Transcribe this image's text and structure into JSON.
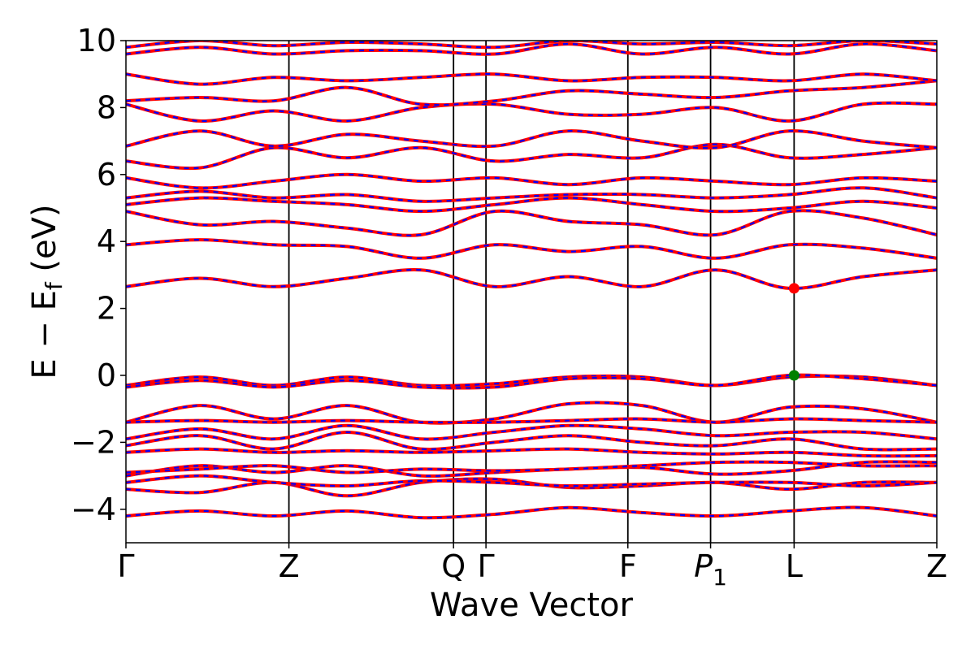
{
  "chart_data": {
    "type": "line",
    "xlabel": "Wave Vector",
    "ylabel": "E − E_f (eV)",
    "ylabel_main": "E − E",
    "ylabel_sub": "f",
    "ylabel_unit": " (eV)",
    "ylim": [
      -5,
      10
    ],
    "yticks": [
      -4,
      -2,
      0,
      2,
      4,
      6,
      8,
      10
    ],
    "ytick_labels": [
      "−4",
      "−2",
      "0",
      "2",
      "4",
      "6",
      "8",
      "10"
    ],
    "xlim": [
      0,
      1
    ],
    "kpoints": [
      {
        "label": "Γ",
        "pos": 0.0
      },
      {
        "label": "Z",
        "pos": 0.201
      },
      {
        "label": "Q",
        "pos": 0.404
      },
      {
        "label": "Γ",
        "pos": 0.444
      },
      {
        "label": "F",
        "pos": 0.619
      },
      {
        "label": "P",
        "sub": "1",
        "pos": 0.721
      },
      {
        "label": "L",
        "pos": 0.824
      },
      {
        "label": "Z",
        "pos": 1.0
      }
    ],
    "band_colors": {
      "primary": "#ff0000",
      "secondary": "#0000ff"
    },
    "markers": [
      {
        "name": "CBM",
        "x": 0.824,
        "y": 2.6,
        "color": "#ff0000"
      },
      {
        "name": "VBM",
        "x": 0.824,
        "y": 0.0,
        "color": "#008000"
      }
    ],
    "bands": [
      {
        "y": [
          -4.2,
          -4.05,
          -4.2,
          -4.05,
          -4.25,
          -4.15,
          -3.95,
          -4.1,
          -4.2,
          -4.05,
          -3.95,
          -4.2
        ]
      },
      {
        "y": [
          -3.4,
          -3.5,
          -3.2,
          -3.6,
          -3.2,
          -3.1,
          -3.35,
          -3.3,
          -3.2,
          -3.4,
          -3.2,
          -3.2
        ]
      },
      {
        "y": [
          -3.2,
          -3.0,
          -3.2,
          -3.3,
          -3.15,
          -3.2,
          -3.3,
          -3.25,
          -3.2,
          -3.2,
          -3.3,
          -3.2
        ]
      },
      {
        "y": [
          -3.0,
          -2.7,
          -2.9,
          -2.7,
          -3.0,
          -2.9,
          -2.8,
          -2.75,
          -2.95,
          -2.85,
          -2.6,
          -2.6
        ]
      },
      {
        "y": [
          -2.9,
          -2.8,
          -2.7,
          -2.9,
          -2.8,
          -2.85,
          -2.8,
          -2.7,
          -2.6,
          -2.6,
          -2.7,
          -2.7
        ]
      },
      {
        "y": [
          -2.3,
          -2.2,
          -2.3,
          -2.25,
          -2.3,
          -2.25,
          -2.2,
          -2.3,
          -2.35,
          -2.3,
          -2.4,
          -2.4
        ]
      },
      {
        "y": [
          -2.1,
          -1.8,
          -2.2,
          -1.7,
          -2.2,
          -2.0,
          -1.8,
          -2.0,
          -2.1,
          -1.9,
          -2.2,
          -2.2
        ]
      },
      {
        "y": [
          -1.9,
          -1.6,
          -1.9,
          -1.5,
          -1.9,
          -1.7,
          -1.5,
          -1.6,
          -1.8,
          -1.7,
          -1.7,
          -1.9
        ]
      },
      {
        "y": [
          -1.4,
          -0.9,
          -1.3,
          -0.9,
          -1.4,
          -1.3,
          -0.85,
          -0.9,
          -1.4,
          -0.95,
          -1.0,
          -1.4
        ]
      },
      {
        "y": [
          -1.4,
          -1.35,
          -1.4,
          -1.35,
          -1.4,
          -1.4,
          -1.35,
          -1.3,
          -1.4,
          -1.3,
          -1.35,
          -1.4
        ]
      },
      {
        "y": [
          -0.3,
          -0.05,
          -0.3,
          -0.05,
          -0.3,
          -0.25,
          -0.05,
          -0.05,
          -0.3,
          -0.05,
          -0.05,
          -0.3
        ]
      },
      {
        "y": [
          -0.35,
          -0.15,
          -0.35,
          -0.15,
          -0.35,
          -0.35,
          -0.1,
          -0.1,
          -0.3,
          0.0,
          -0.1,
          -0.3
        ]
      },
      {
        "y": [
          2.65,
          2.9,
          2.65,
          2.9,
          3.15,
          2.65,
          2.95,
          2.65,
          3.15,
          2.6,
          2.95,
          3.15
        ]
      },
      {
        "y": [
          3.9,
          4.05,
          3.9,
          3.85,
          3.5,
          3.9,
          3.7,
          3.85,
          3.5,
          3.9,
          3.8,
          3.5
        ]
      },
      {
        "y": [
          4.9,
          4.5,
          4.6,
          4.4,
          4.2,
          4.9,
          4.6,
          4.5,
          4.2,
          4.9,
          4.7,
          4.2
        ]
      },
      {
        "y": [
          5.1,
          5.3,
          5.2,
          5.1,
          4.9,
          5.1,
          5.3,
          5.1,
          4.9,
          5.0,
          5.2,
          5.0
        ]
      },
      {
        "y": [
          5.3,
          5.5,
          5.3,
          5.4,
          5.2,
          5.3,
          5.4,
          5.4,
          5.3,
          5.4,
          5.6,
          5.3
        ]
      },
      {
        "y": [
          5.9,
          5.6,
          5.8,
          6.0,
          5.8,
          5.9,
          5.7,
          5.9,
          5.8,
          5.7,
          5.9,
          5.8
        ]
      },
      {
        "y": [
          6.4,
          6.2,
          6.8,
          6.5,
          6.8,
          6.4,
          6.6,
          6.5,
          6.9,
          6.5,
          6.6,
          6.8
        ]
      },
      {
        "y": [
          6.85,
          7.3,
          6.85,
          7.2,
          7.0,
          6.85,
          7.3,
          7.0,
          6.8,
          7.3,
          7.0,
          6.8
        ]
      },
      {
        "y": [
          8.1,
          7.6,
          7.9,
          7.6,
          8.0,
          8.1,
          7.8,
          7.8,
          8.0,
          7.6,
          8.1,
          8.1
        ]
      },
      {
        "y": [
          8.2,
          8.3,
          8.2,
          8.6,
          8.1,
          8.2,
          8.5,
          8.4,
          8.3,
          8.5,
          8.6,
          8.8
        ]
      },
      {
        "y": [
          9.0,
          8.7,
          8.9,
          8.8,
          8.9,
          9.0,
          8.8,
          8.9,
          8.9,
          8.8,
          9.0,
          8.8
        ]
      },
      {
        "y": [
          9.6,
          9.8,
          9.6,
          9.7,
          9.7,
          9.6,
          9.9,
          9.6,
          9.8,
          9.6,
          9.9,
          9.7
        ]
      },
      {
        "y": [
          9.8,
          10.0,
          9.85,
          9.95,
          9.9,
          9.8,
          10.0,
          9.9,
          9.95,
          9.85,
          10.0,
          9.9
        ]
      }
    ]
  }
}
